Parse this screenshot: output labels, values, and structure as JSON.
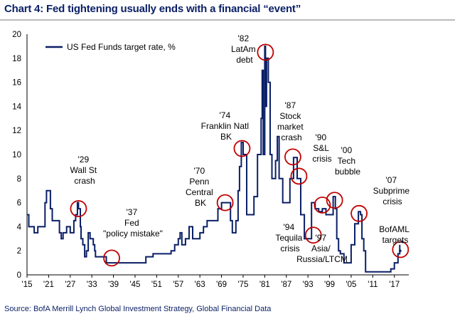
{
  "page": {
    "title": "Chart 4: Fed tightening usually ends with a financial “event”",
    "source": "Source: BofA Merrill Lynch Global Investment Strategy, Global Financial Data"
  },
  "chart_data": {
    "type": "line",
    "title": "Chart 4: Fed tightening usually ends with a financial “event”",
    "xlabel": "",
    "ylabel": "",
    "xlim": [
      1915,
      2021
    ],
    "ylim": [
      0,
      20
    ],
    "yticks": [
      0,
      2,
      4,
      6,
      8,
      10,
      12,
      14,
      16,
      18,
      20
    ],
    "xticks": [
      {
        "year": 1915,
        "label": "'15"
      },
      {
        "year": 1921,
        "label": "'21"
      },
      {
        "year": 1927,
        "label": "'27"
      },
      {
        "year": 1933,
        "label": "'33"
      },
      {
        "year": 1939,
        "label": "'39"
      },
      {
        "year": 1945,
        "label": "'45"
      },
      {
        "year": 1951,
        "label": "'51"
      },
      {
        "year": 1957,
        "label": "'57"
      },
      {
        "year": 1963,
        "label": "'63"
      },
      {
        "year": 1969,
        "label": "'69"
      },
      {
        "year": 1975,
        "label": "'75"
      },
      {
        "year": 1981,
        "label": "'81"
      },
      {
        "year": 1987,
        "label": "'87"
      },
      {
        "year": 1993,
        "label": "'93"
      },
      {
        "year": 1999,
        "label": "'99"
      },
      {
        "year": 2005,
        "label": "'05"
      },
      {
        "year": 2011,
        "label": "'11"
      },
      {
        "year": 2017,
        "label": "'17"
      }
    ],
    "grid": false,
    "legend_position": "top-left",
    "series": [
      {
        "name": "US Fed Funds target rate, %",
        "color": "#0a1f66",
        "x": [
          1915,
          1915.5,
          1916,
          1917,
          1918,
          1919,
          1920,
          1920.4,
          1921,
          1921.5,
          1922,
          1923,
          1924,
          1924.5,
          1925,
          1926,
          1927,
          1928,
          1928.5,
          1929,
          1929.3,
          1929.8,
          1930,
          1930.5,
          1931,
          1931.5,
          1932,
          1932.5,
          1933,
          1933.4,
          1933.8,
          1934,
          1935,
          1936,
          1937,
          1938,
          1940,
          1942,
          1944,
          1946,
          1948,
          1950,
          1952,
          1954,
          1955,
          1956,
          1957,
          1957.5,
          1958,
          1959,
          1960,
          1961,
          1962,
          1963,
          1964,
          1965,
          1966,
          1967,
          1968,
          1969,
          1970,
          1971,
          1971.5,
          1972,
          1973,
          1973.6,
          1974,
          1974.5,
          1975,
          1976,
          1977,
          1978,
          1979,
          1980,
          1980.3,
          1980.6,
          1981,
          1981.2,
          1981.5,
          1982,
          1982.5,
          1983,
          1984,
          1984.5,
          1985,
          1986,
          1987,
          1988,
          1989,
          1990,
          1991,
          1992,
          1993,
          1994,
          1995,
          1996,
          1997,
          1998,
          1999,
          2000,
          2000.6,
          2001,
          2001.5,
          2002,
          2003,
          2004,
          2005,
          2006,
          2007,
          2007.6,
          2008,
          2008.5,
          2009,
          2012,
          2015,
          2016,
          2017,
          2018,
          2018.5
        ],
        "y": [
          5,
          4,
          4,
          3.5,
          4,
          4,
          6,
          7,
          7,
          5.5,
          4.5,
          4.5,
          3.5,
          3,
          3.5,
          4,
          3.5,
          4.5,
          5,
          6,
          5.5,
          4,
          3,
          2.5,
          1.5,
          2,
          3.5,
          3,
          3,
          2.5,
          2,
          1.5,
          1.5,
          1.5,
          1,
          1,
          1,
          1,
          1,
          1,
          1.5,
          1.75,
          1.75,
          1.75,
          2,
          2.5,
          3,
          3.5,
          2.5,
          3,
          4,
          3,
          3,
          3.5,
          4,
          4.5,
          4.5,
          4.5,
          5.5,
          6,
          6,
          6,
          4.5,
          3.5,
          4.5,
          7,
          9,
          11,
          10,
          5,
          5,
          6.5,
          10,
          13,
          17,
          10,
          19,
          14,
          18,
          16,
          10,
          8,
          9.5,
          11.5,
          8,
          6,
          6,
          8,
          9.75,
          8,
          5,
          3,
          3,
          6,
          5.5,
          5.25,
          5.5,
          5,
          5,
          6.5,
          5.5,
          3,
          2,
          1.75,
          1,
          1,
          2.5,
          4.25,
          5.25,
          5,
          3,
          2,
          0.25,
          0.25,
          0.25,
          0.5,
          1,
          1.75,
          2.5
        ]
      }
    ],
    "annotations": [
      {
        "lines": [
          "'29",
          "Wall St",
          "crash"
        ]
      },
      {
        "lines": [
          "'37",
          "Fed",
          "\"policy mistake\""
        ]
      },
      {
        "lines": [
          "'70",
          "Penn",
          "Central",
          "BK"
        ]
      },
      {
        "lines": [
          "'74",
          "Franklin Natl",
          "BK"
        ]
      },
      {
        "lines": [
          "'82",
          "LatAm",
          "debt"
        ]
      },
      {
        "lines": [
          "'87",
          "Stock",
          "market",
          "crash"
        ]
      },
      {
        "lines": [
          "'90",
          "S&L",
          "crisis"
        ]
      },
      {
        "lines": [
          "'00",
          "Tech",
          "bubble"
        ]
      },
      {
        "lines": [
          "'94",
          "Tequila",
          "crisis"
        ]
      },
      {
        "lines": [
          "'97",
          "Asia/",
          "Russia/LTCM"
        ]
      },
      {
        "lines": [
          "'07",
          "Subprime",
          "crisis"
        ]
      },
      {
        "lines": [
          "BofAML",
          "targets"
        ]
      }
    ],
    "event_circles": [
      {
        "name": "1929-wall-st-crash",
        "x": 1929.3,
        "y": 5.5
      },
      {
        "name": "1937-fed-policy-mistake",
        "x": 1938.5,
        "y": 1.4
      },
      {
        "name": "1970-penn-central",
        "x": 1970,
        "y": 6
      },
      {
        "name": "1974-franklin-natl",
        "x": 1974.7,
        "y": 10.5
      },
      {
        "name": "1982-latam-debt",
        "x": 1981.2,
        "y": 18.5
      },
      {
        "name": "1987-stock-market-crash",
        "x": 1988.8,
        "y": 9.8
      },
      {
        "name": "1990-sl-crisis",
        "x": 1990.5,
        "y": 8.2
      },
      {
        "name": "1994-tequila-crisis",
        "x": 1994.5,
        "y": 3.3
      },
      {
        "name": "1997-asia-russia-ltcm",
        "x": 1997,
        "y": 5.8
      },
      {
        "name": "2000-tech-bubble",
        "x": 2000.4,
        "y": 6.2
      },
      {
        "name": "2007-subprime",
        "x": 2007.2,
        "y": 5.1
      },
      {
        "name": "bofaml-targets",
        "x": 2018.7,
        "y": 2.1
      }
    ],
    "bofaml_target_points": [
      {
        "x": 2019.2,
        "y": 2.75
      },
      {
        "x": 2018.6,
        "y": 2.0
      }
    ]
  }
}
